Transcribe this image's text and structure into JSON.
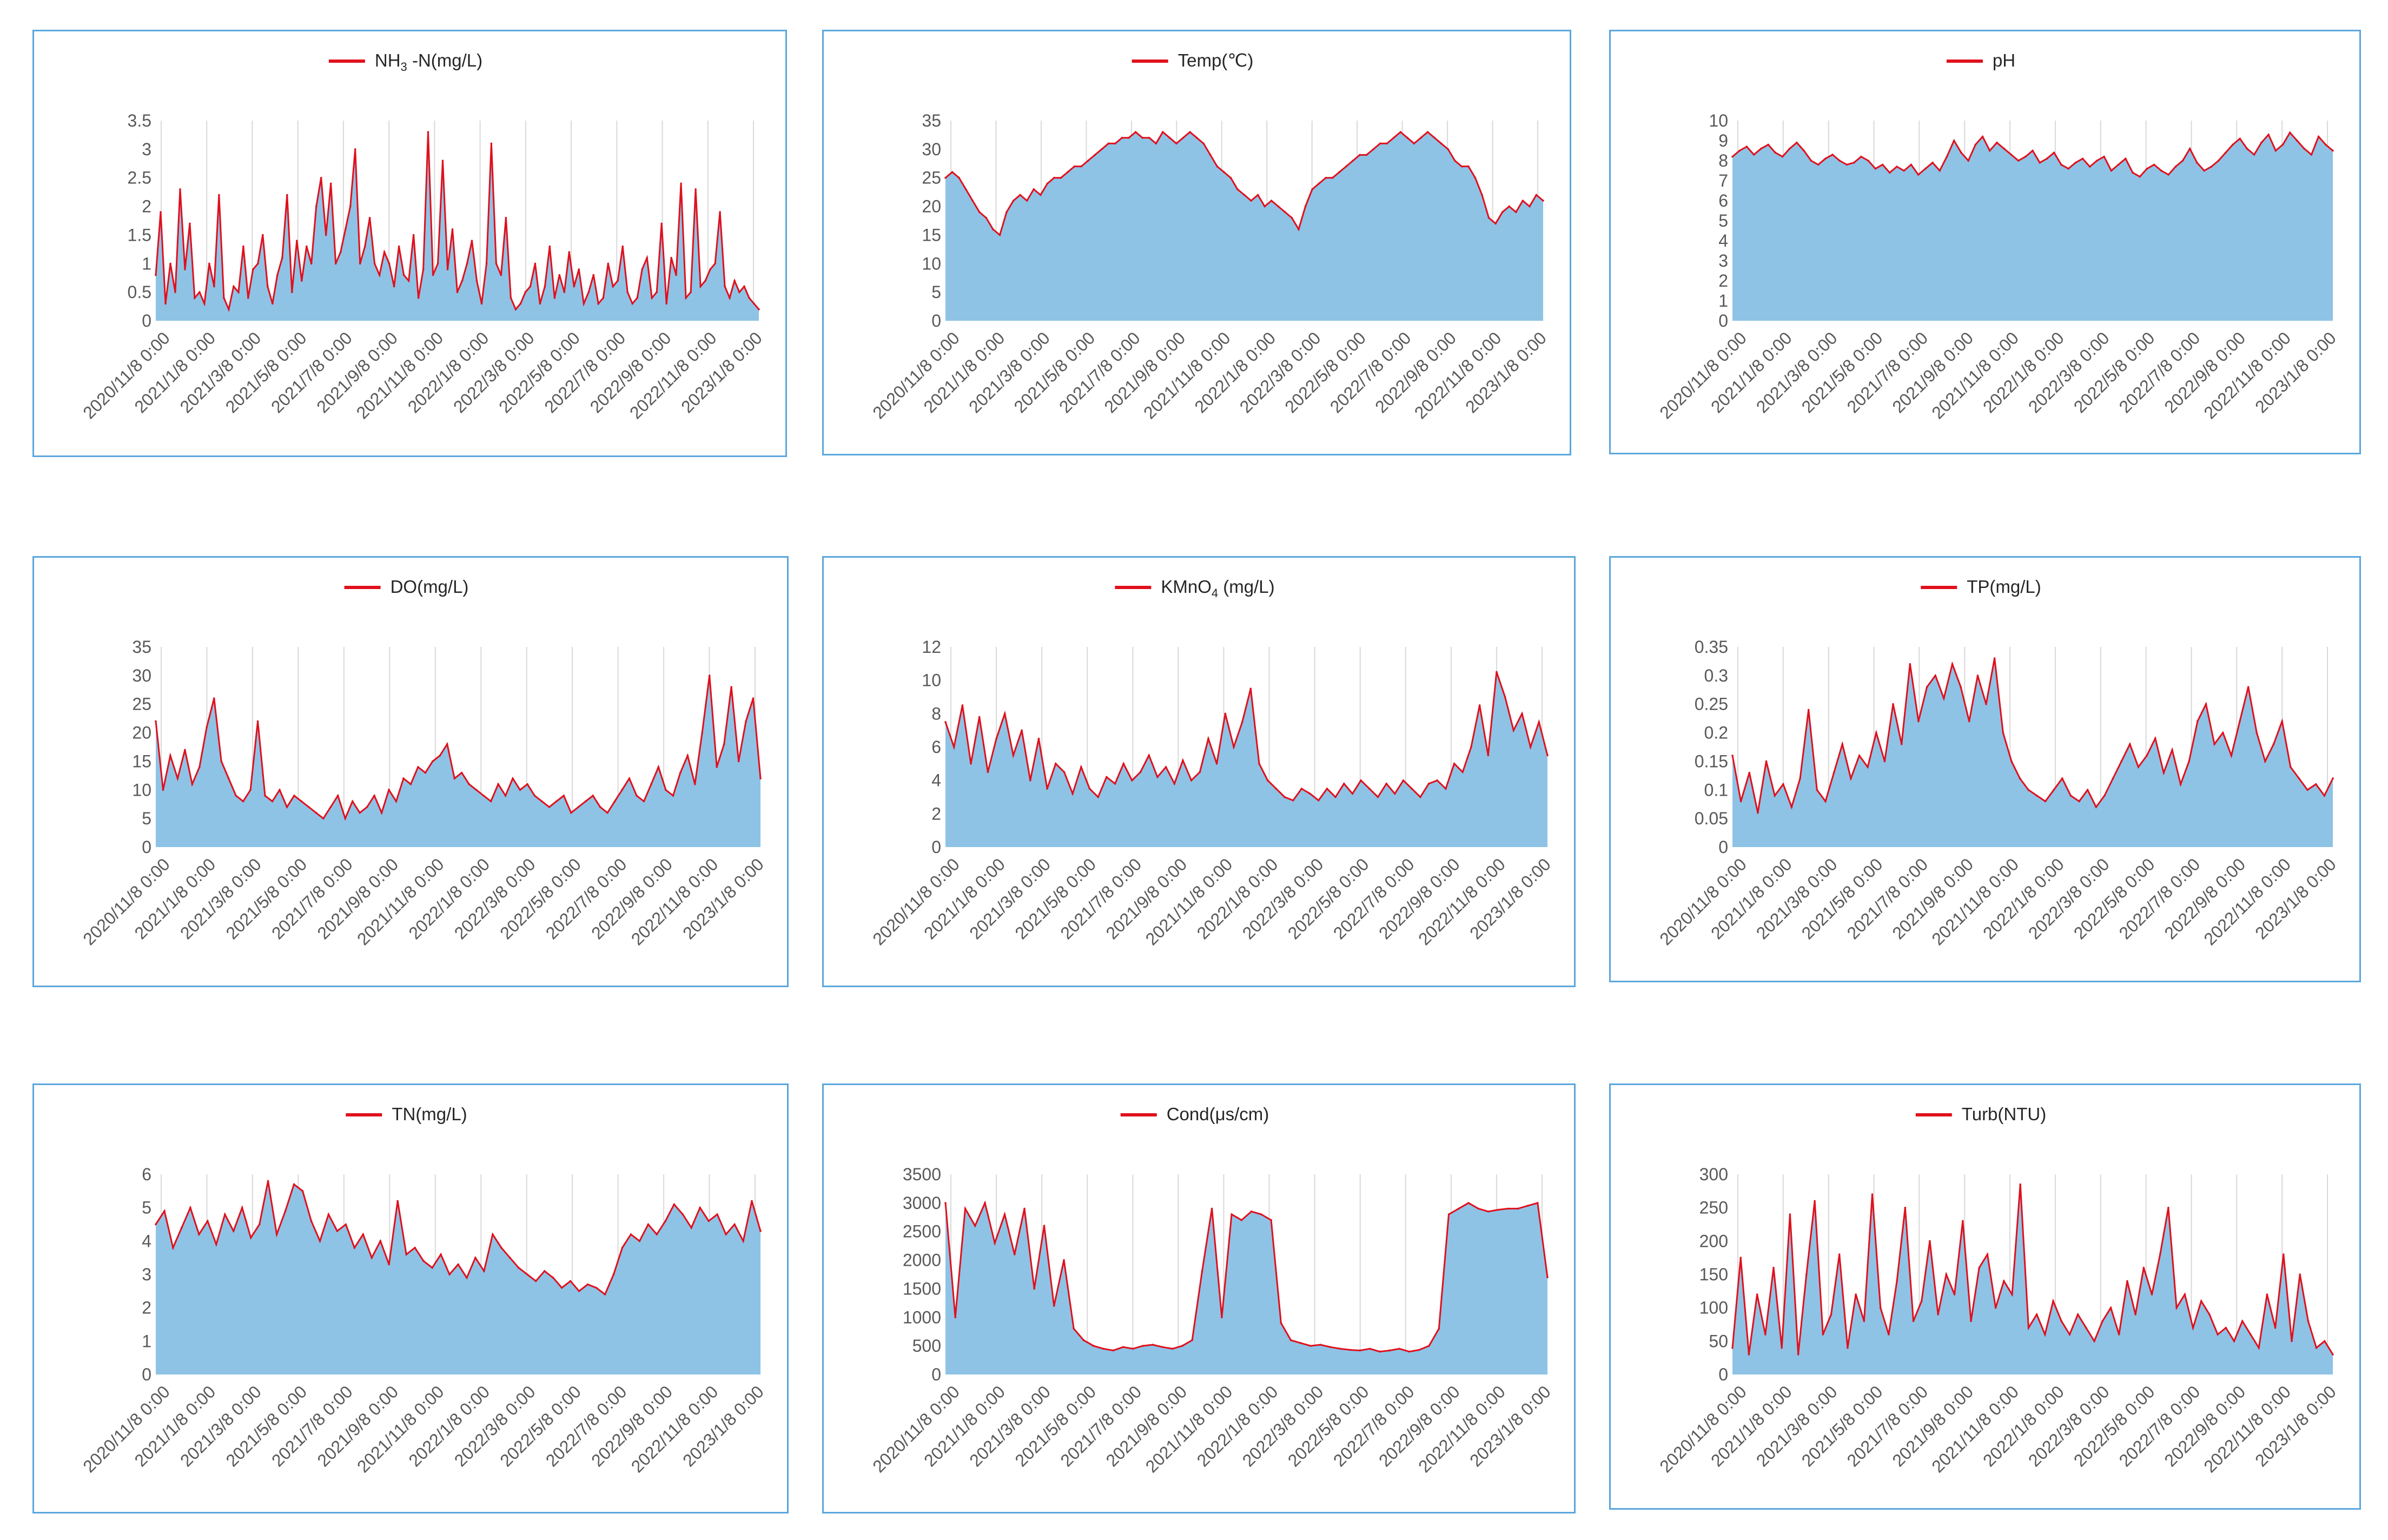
{
  "colors": {
    "area_fill": "#8ec3e6",
    "line": "#e0101c",
    "frame": "#5aa7dd",
    "grid": "#d9d9d9",
    "text": "#595959"
  },
  "chart_data": [
    {
      "type": "area",
      "title": "NH₃ -N(mg/L)",
      "title_parts": [
        "NH",
        "3",
        " -N(mg/L)"
      ],
      "x_ticks": [
        "2020/11/8 0:00",
        "2021/1/8 0:00",
        "2021/3/8 0:00",
        "2021/5/8 0:00",
        "2021/7/8 0:00",
        "2021/9/8 0:00",
        "2021/11/8 0:00",
        "2022/1/8 0:00",
        "2022/3/8 0:00",
        "2022/5/8 0:00",
        "2022/7/8 0:00",
        "2022/9/8 0:00",
        "2022/11/8 0:00",
        "2023/1/8 0:00"
      ],
      "y_ticks": [
        "0",
        "0.5",
        "1",
        "1.5",
        "2",
        "2.5",
        "3",
        "3.5"
      ],
      "ylim": [
        0,
        3.5
      ],
      "series": [
        {
          "name": "NH₃ -N(mg/L)",
          "values": [
            0.8,
            1.9,
            0.3,
            1.0,
            0.5,
            2.3,
            0.9,
            1.7,
            0.4,
            0.5,
            0.3,
            1.0,
            0.6,
            2.2,
            0.4,
            0.2,
            0.6,
            0.5,
            1.3,
            0.4,
            0.9,
            1.0,
            1.5,
            0.6,
            0.3,
            0.8,
            1.1,
            2.2,
            0.5,
            1.4,
            0.7,
            1.3,
            1.0,
            2.0,
            2.5,
            1.5,
            2.4,
            1.0,
            1.2,
            1.6,
            2.0,
            3.0,
            1.0,
            1.3,
            1.8,
            1.0,
            0.8,
            1.2,
            1.0,
            0.6,
            1.3,
            0.8,
            0.7,
            1.5,
            0.4,
            0.9,
            3.3,
            0.8,
            1.0,
            2.8,
            0.9,
            1.6,
            0.5,
            0.7,
            1.0,
            1.4,
            0.7,
            0.3,
            1.0,
            3.1,
            1.0,
            0.8,
            1.8,
            0.4,
            0.2,
            0.3,
            0.5,
            0.6,
            1.0,
            0.3,
            0.6,
            1.3,
            0.4,
            0.8,
            0.5,
            1.2,
            0.6,
            0.9,
            0.3,
            0.5,
            0.8,
            0.3,
            0.4,
            1.0,
            0.6,
            0.7,
            1.3,
            0.5,
            0.3,
            0.4,
            0.9,
            1.1,
            0.4,
            0.5,
            1.7,
            0.3,
            1.1,
            0.8,
            2.4,
            0.4,
            0.5,
            2.3,
            0.6,
            0.7,
            0.9,
            1.0,
            1.9,
            0.6,
            0.4,
            0.7,
            0.5,
            0.6,
            0.4,
            0.3,
            0.2
          ]
        }
      ]
    },
    {
      "type": "area",
      "title": "Temp(℃)",
      "title_parts": [
        "Temp(℃)"
      ],
      "x_ticks": [
        "2020/11/8 0:00",
        "2021/1/8 0:00",
        "2021/3/8 0:00",
        "2021/5/8 0:00",
        "2021/7/8 0:00",
        "2021/9/8 0:00",
        "2021/11/8 0:00",
        "2022/1/8 0:00",
        "2022/3/8 0:00",
        "2022/5/8 0:00",
        "2022/7/8 0:00",
        "2022/9/8 0:00",
        "2022/11/8 0:00",
        "2023/1/8 0:00"
      ],
      "y_ticks": [
        "0",
        "5",
        "10",
        "15",
        "20",
        "25",
        "30",
        "35"
      ],
      "ylim": [
        0,
        35
      ],
      "series": [
        {
          "name": "Temp(℃)",
          "values": [
            25,
            26,
            25,
            23,
            21,
            19,
            18,
            16,
            15,
            19,
            21,
            22,
            21,
            23,
            22,
            24,
            25,
            25,
            26,
            27,
            27,
            28,
            29,
            30,
            31,
            31,
            32,
            32,
            33,
            32,
            32,
            31,
            33,
            32,
            31,
            32,
            33,
            32,
            31,
            29,
            27,
            26,
            25,
            23,
            22,
            21,
            22,
            20,
            21,
            20,
            19,
            18,
            16,
            20,
            23,
            24,
            25,
            25,
            26,
            27,
            28,
            29,
            29,
            30,
            31,
            31,
            32,
            33,
            32,
            31,
            32,
            33,
            32,
            31,
            30,
            28,
            27,
            27,
            25,
            22,
            18,
            17,
            19,
            20,
            19,
            21,
            20,
            22,
            21
          ]
        }
      ]
    },
    {
      "type": "area",
      "title": "pH",
      "title_parts": [
        "pH"
      ],
      "x_ticks": [
        "2020/11/8 0:00",
        "2021/1/8 0:00",
        "2021/3/8 0:00",
        "2021/5/8 0:00",
        "2021/7/8 0:00",
        "2021/9/8 0:00",
        "2021/11/8 0:00",
        "2022/1/8 0:00",
        "2022/3/8 0:00",
        "2022/5/8 0:00",
        "2022/7/8 0:00",
        "2022/9/8 0:00",
        "2022/11/8 0:00",
        "2023/1/8 0:00"
      ],
      "y_ticks": [
        "0",
        "1",
        "2",
        "3",
        "4",
        "5",
        "6",
        "7",
        "8",
        "9",
        "10"
      ],
      "ylim": [
        0,
        10
      ],
      "series": [
        {
          "name": "pH",
          "values": [
            8.2,
            8.5,
            8.7,
            8.3,
            8.6,
            8.8,
            8.4,
            8.2,
            8.6,
            8.9,
            8.5,
            8.0,
            7.8,
            8.1,
            8.3,
            8.0,
            7.8,
            7.9,
            8.2,
            8.0,
            7.6,
            7.8,
            7.4,
            7.7,
            7.5,
            7.8,
            7.3,
            7.6,
            7.9,
            7.5,
            8.2,
            9.0,
            8.4,
            8.0,
            8.8,
            9.2,
            8.5,
            8.9,
            8.6,
            8.3,
            8.0,
            8.2,
            8.5,
            7.9,
            8.1,
            8.4,
            7.8,
            7.6,
            7.9,
            8.1,
            7.7,
            8.0,
            8.2,
            7.5,
            7.8,
            8.1,
            7.4,
            7.2,
            7.6,
            7.8,
            7.5,
            7.3,
            7.7,
            8.0,
            8.6,
            7.9,
            7.5,
            7.7,
            8.0,
            8.4,
            8.8,
            9.1,
            8.6,
            8.3,
            8.9,
            9.3,
            8.5,
            8.8,
            9.4,
            9.0,
            8.6,
            8.3,
            9.2,
            8.8,
            8.5
          ]
        }
      ]
    },
    {
      "type": "area",
      "title": "DO(mg/L)",
      "title_parts": [
        "DO(mg/L)"
      ],
      "x_ticks": [
        "2020/11/8 0:00",
        "2021/1/8 0:00",
        "2021/3/8 0:00",
        "2021/5/8 0:00",
        "2021/7/8 0:00",
        "2021/9/8 0:00",
        "2021/11/8 0:00",
        "2022/1/8 0:00",
        "2022/3/8 0:00",
        "2022/5/8 0:00",
        "2022/7/8 0:00",
        "2022/9/8 0:00",
        "2022/11/8 0:00",
        "2023/1/8 0:00"
      ],
      "y_ticks": [
        "0",
        "5",
        "10",
        "15",
        "20",
        "25",
        "30",
        "35"
      ],
      "ylim": [
        0,
        35
      ],
      "series": [
        {
          "name": "DO(mg/L)",
          "values": [
            22,
            10,
            16,
            12,
            17,
            11,
            14,
            21,
            26,
            15,
            12,
            9,
            8,
            10,
            22,
            9,
            8,
            10,
            7,
            9,
            8,
            7,
            6,
            5,
            7,
            9,
            5,
            8,
            6,
            7,
            9,
            6,
            10,
            8,
            12,
            11,
            14,
            13,
            15,
            16,
            18,
            12,
            13,
            11,
            10,
            9,
            8,
            11,
            9,
            12,
            10,
            11,
            9,
            8,
            7,
            8,
            9,
            6,
            7,
            8,
            9,
            7,
            6,
            8,
            10,
            12,
            9,
            8,
            11,
            14,
            10,
            9,
            13,
            16,
            11,
            20,
            30,
            14,
            18,
            28,
            15,
            22,
            26,
            12
          ]
        }
      ]
    },
    {
      "type": "area",
      "title": "KMnO₄ (mg/L)",
      "title_parts": [
        "KMnO",
        "4",
        " (mg/L)"
      ],
      "x_ticks": [
        "2020/11/8 0:00",
        "2021/1/8 0:00",
        "2021/3/8 0:00",
        "2021/5/8 0:00",
        "2021/7/8 0:00",
        "2021/9/8 0:00",
        "2021/11/8 0:00",
        "2022/1/8 0:00",
        "2022/3/8 0:00",
        "2022/5/8 0:00",
        "2022/7/8 0:00",
        "2022/9/8 0:00",
        "2022/11/8 0:00",
        "2023/1/8 0:00"
      ],
      "y_ticks": [
        "0",
        "2",
        "4",
        "6",
        "8",
        "10",
        "12"
      ],
      "ylim": [
        0,
        12
      ],
      "series": [
        {
          "name": "KMnO₄ (mg/L)",
          "values": [
            7.5,
            6.0,
            8.5,
            5.0,
            7.8,
            4.5,
            6.5,
            8.0,
            5.5,
            7.0,
            4.0,
            6.5,
            3.5,
            5.0,
            4.5,
            3.2,
            4.8,
            3.5,
            3.0,
            4.2,
            3.8,
            5.0,
            4.0,
            4.5,
            5.5,
            4.2,
            4.8,
            3.8,
            5.2,
            4.0,
            4.5,
            6.5,
            5.0,
            8.0,
            6.0,
            7.5,
            9.5,
            5.0,
            4.0,
            3.5,
            3.0,
            2.8,
            3.5,
            3.2,
            2.8,
            3.5,
            3.0,
            3.8,
            3.2,
            4.0,
            3.5,
            3.0,
            3.8,
            3.2,
            4.0,
            3.5,
            3.0,
            3.8,
            4.0,
            3.5,
            5.0,
            4.5,
            6.0,
            8.5,
            5.5,
            10.5,
            9.0,
            7.0,
            8.0,
            6.0,
            7.5,
            5.5
          ]
        }
      ]
    },
    {
      "type": "area",
      "title": "TP(mg/L)",
      "title_parts": [
        "TP(mg/L)"
      ],
      "x_ticks": [
        "2020/11/8 0:00",
        "2021/1/8 0:00",
        "2021/3/8 0:00",
        "2021/5/8 0:00",
        "2021/7/8 0:00",
        "2021/9/8 0:00",
        "2021/11/8 0:00",
        "2022/1/8 0:00",
        "2022/3/8 0:00",
        "2022/5/8 0:00",
        "2022/7/8 0:00",
        "2022/9/8 0:00",
        "2022/11/8 0:00",
        "2023/1/8 0:00"
      ],
      "y_ticks": [
        "0",
        "0.05",
        "0.1",
        "0.15",
        "0.2",
        "0.25",
        "0.3",
        "0.35"
      ],
      "ylim": [
        0,
        0.35
      ],
      "series": [
        {
          "name": "TP(mg/L)",
          "values": [
            0.16,
            0.08,
            0.13,
            0.06,
            0.15,
            0.09,
            0.11,
            0.07,
            0.12,
            0.24,
            0.1,
            0.08,
            0.13,
            0.18,
            0.12,
            0.16,
            0.14,
            0.2,
            0.15,
            0.25,
            0.18,
            0.32,
            0.22,
            0.28,
            0.3,
            0.26,
            0.32,
            0.28,
            0.22,
            0.3,
            0.25,
            0.33,
            0.2,
            0.15,
            0.12,
            0.1,
            0.09,
            0.08,
            0.1,
            0.12,
            0.09,
            0.08,
            0.1,
            0.07,
            0.09,
            0.12,
            0.15,
            0.18,
            0.14,
            0.16,
            0.19,
            0.13,
            0.17,
            0.11,
            0.15,
            0.22,
            0.25,
            0.18,
            0.2,
            0.16,
            0.22,
            0.28,
            0.2,
            0.15,
            0.18,
            0.22,
            0.14,
            0.12,
            0.1,
            0.11,
            0.09,
            0.12
          ]
        }
      ]
    },
    {
      "type": "area",
      "title": "TN(mg/L)",
      "title_parts": [
        "TN(mg/L)"
      ],
      "x_ticks": [
        "2020/11/8 0:00",
        "2021/1/8 0:00",
        "2021/3/8 0:00",
        "2021/5/8 0:00",
        "2021/7/8 0:00",
        "2021/9/8 0:00",
        "2021/11/8 0:00",
        "2022/1/8 0:00",
        "2022/3/8 0:00",
        "2022/5/8 0:00",
        "2022/7/8 0:00",
        "2022/9/8 0:00",
        "2022/11/8 0:00",
        "2023/1/8 0:00"
      ],
      "y_ticks": [
        "0",
        "1",
        "2",
        "3",
        "4",
        "5",
        "6"
      ],
      "ylim": [
        0,
        6
      ],
      "series": [
        {
          "name": "TN(mg/L)",
          "values": [
            4.5,
            4.9,
            3.8,
            4.4,
            5.0,
            4.2,
            4.6,
            3.9,
            4.8,
            4.3,
            5.0,
            4.1,
            4.5,
            5.8,
            4.2,
            4.9,
            5.7,
            5.5,
            4.6,
            4.0,
            4.8,
            4.3,
            4.5,
            3.8,
            4.2,
            3.5,
            4.0,
            3.3,
            5.2,
            3.6,
            3.8,
            3.4,
            3.2,
            3.6,
            3.0,
            3.3,
            2.9,
            3.5,
            3.1,
            4.2,
            3.8,
            3.5,
            3.2,
            3.0,
            2.8,
            3.1,
            2.9,
            2.6,
            2.8,
            2.5,
            2.7,
            2.6,
            2.4,
            3.0,
            3.8,
            4.2,
            4.0,
            4.5,
            4.2,
            4.6,
            5.1,
            4.8,
            4.4,
            5.0,
            4.6,
            4.8,
            4.2,
            4.5,
            4.0,
            5.2,
            4.3
          ]
        }
      ]
    },
    {
      "type": "area",
      "title": "Cond(μs/cm)",
      "title_parts": [
        "Cond(μs/cm)"
      ],
      "x_ticks": [
        "2020/11/8 0:00",
        "2021/1/8 0:00",
        "2021/3/8 0:00",
        "2021/5/8 0:00",
        "2021/7/8 0:00",
        "2021/9/8 0:00",
        "2021/11/8 0:00",
        "2022/1/8 0:00",
        "2022/3/8 0:00",
        "2022/5/8 0:00",
        "2022/7/8 0:00",
        "2022/9/8 0:00",
        "2022/11/8 0:00",
        "2023/1/8 0:00"
      ],
      "y_ticks": [
        "0",
        "500",
        "1000",
        "1500",
        "2000",
        "2500",
        "3000",
        "3500"
      ],
      "ylim": [
        0,
        3500
      ],
      "series": [
        {
          "name": "Cond(μs/cm)",
          "values": [
            3000,
            1000,
            2900,
            2600,
            3000,
            2300,
            2800,
            2100,
            2900,
            1500,
            2600,
            1200,
            2000,
            800,
            600,
            500,
            450,
            420,
            480,
            450,
            500,
            520,
            480,
            450,
            500,
            600,
            1800,
            2900,
            1000,
            2800,
            2700,
            2850,
            2800,
            2700,
            900,
            600,
            550,
            500,
            520,
            480,
            450,
            430,
            420,
            450,
            400,
            420,
            450,
            400,
            430,
            500,
            800,
            2800,
            2900,
            3000,
            2900,
            2850,
            2880,
            2900,
            2900,
            2950,
            3000,
            1700
          ]
        }
      ]
    },
    {
      "type": "area",
      "title": "Turb(NTU)",
      "title_parts": [
        "Turb(NTU)"
      ],
      "x_ticks": [
        "2020/11/8 0:00",
        "2021/1/8 0:00",
        "2021/3/8 0:00",
        "2021/5/8 0:00",
        "2021/7/8 0:00",
        "2021/9/8 0:00",
        "2021/11/8 0:00",
        "2022/1/8 0:00",
        "2022/3/8 0:00",
        "2022/5/8 0:00",
        "2022/7/8 0:00",
        "2022/9/8 0:00",
        "2022/11/8 0:00",
        "2023/1/8 0:00"
      ],
      "y_ticks": [
        "0",
        "50",
        "100",
        "150",
        "200",
        "250",
        "300"
      ],
      "ylim": [
        0,
        300
      ],
      "series": [
        {
          "name": "Turb(NTU)",
          "values": [
            40,
            175,
            30,
            120,
            60,
            160,
            40,
            240,
            30,
            150,
            260,
            60,
            90,
            180,
            40,
            120,
            80,
            270,
            100,
            60,
            140,
            250,
            80,
            110,
            200,
            90,
            150,
            120,
            230,
            80,
            160,
            180,
            100,
            140,
            120,
            285,
            70,
            90,
            60,
            110,
            80,
            60,
            90,
            70,
            50,
            80,
            100,
            60,
            140,
            90,
            160,
            120,
            180,
            250,
            100,
            120,
            70,
            110,
            90,
            60,
            70,
            50,
            80,
            60,
            40,
            120,
            70,
            180,
            50,
            150,
            80,
            40,
            50,
            30
          ]
        }
      ]
    }
  ]
}
